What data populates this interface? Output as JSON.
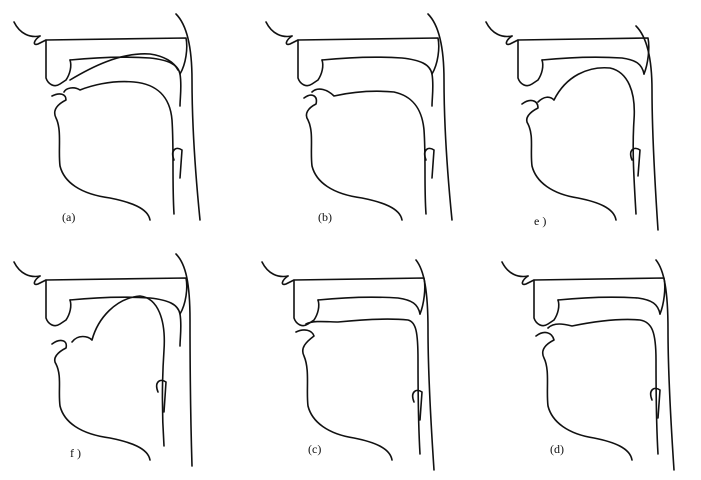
{
  "panels": [
    {
      "caption": "(a)",
      "articulation": "tongue tip raised toward teeth, body low"
    },
    {
      "caption": "(b)",
      "articulation": "tongue blade touching alveolar ridge"
    },
    {
      "caption": "e )",
      "articulation": "tongue arched high toward palate"
    },
    {
      "caption": "f )",
      "articulation": "tongue body humped under hard palate"
    },
    {
      "caption": "(c)",
      "articulation": "tongue flat and forward along teeth"
    },
    {
      "caption": "(d)",
      "articulation": "tongue flat with slight front contact"
    }
  ]
}
